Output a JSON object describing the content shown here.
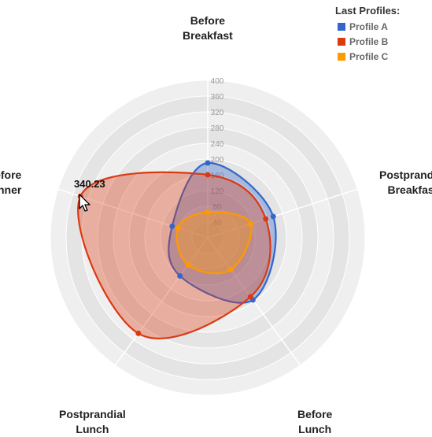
{
  "legend": {
    "title": "Last Profiles:",
    "items": [
      {
        "name": "Profile A",
        "color": "#3366cc"
      },
      {
        "name": "Profile B",
        "color": "#dc3912"
      },
      {
        "name": "Profile C",
        "color": "#ff9900"
      }
    ]
  },
  "tooltip": {
    "value": "340.23"
  },
  "chart_data": {
    "type": "radar",
    "axes": [
      [
        "Before",
        "Breakfast"
      ],
      [
        "Postprandial",
        "Breakfast"
      ],
      [
        "Before",
        "Lunch"
      ],
      [
        "Postprandial",
        "Lunch"
      ],
      [
        "Before",
        "Dinner"
      ]
    ],
    "rlim": [
      0,
      400
    ],
    "ticks": [
      "40",
      "80",
      "120",
      "160",
      "200",
      "240",
      "280",
      "320",
      "360",
      "400"
    ],
    "series": [
      {
        "name": "Profile A",
        "color": "#3366cc",
        "values": [
          190,
          175,
          195,
          120,
          95
        ]
      },
      {
        "name": "Profile B",
        "color": "#dc3912",
        "values": [
          160,
          155,
          185,
          300,
          340.23
        ]
      },
      {
        "name": "Profile C",
        "color": "#ff9900",
        "values": [
          65,
          115,
          100,
          85,
          80
        ]
      }
    ],
    "grid": true,
    "legend_position": "top-right"
  }
}
